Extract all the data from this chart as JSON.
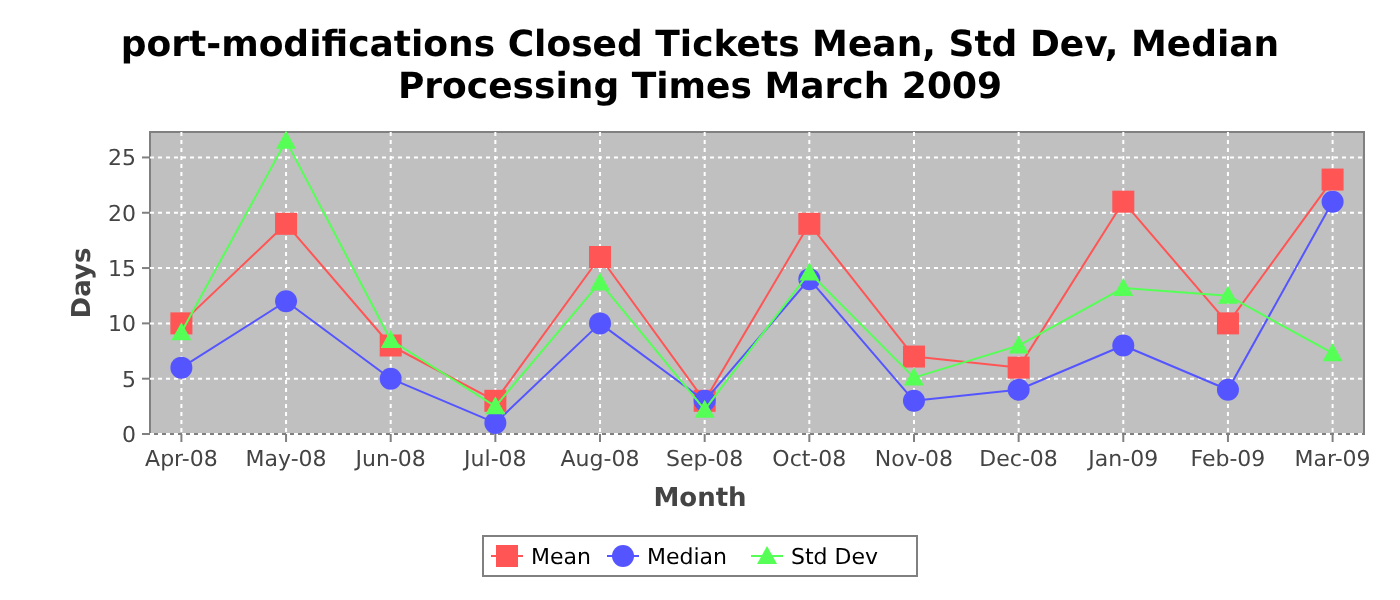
{
  "chart_data": {
    "type": "line",
    "title": "port-modifications Closed Tickets Mean, Std Dev, Median Processing Times March 2009",
    "xlabel": "Month",
    "ylabel": "Days",
    "categories": [
      "Apr-08",
      "May-08",
      "Jun-08",
      "Jul-08",
      "Aug-08",
      "Sep-08",
      "Oct-08",
      "Nov-08",
      "Dec-08",
      "Jan-09",
      "Feb-09",
      "Mar-09"
    ],
    "series": [
      {
        "name": "Mean",
        "color": "#ff5555",
        "marker": "square",
        "values": [
          10,
          19,
          8,
          3,
          16,
          3,
          19,
          7,
          6,
          21,
          10,
          23
        ]
      },
      {
        "name": "Median",
        "color": "#5555ff",
        "marker": "circle",
        "values": [
          6,
          12,
          5,
          1,
          10,
          3,
          14,
          3,
          4,
          8,
          4,
          21
        ]
      },
      {
        "name": "Std Dev",
        "color": "#55ff55",
        "marker": "triangle",
        "values": [
          9.2,
          26.5,
          8.5,
          2.5,
          13.7,
          2.2,
          14.6,
          5.1,
          8,
          13.2,
          12.5,
          7.3
        ]
      }
    ],
    "ylim": [
      0,
      27.3
    ],
    "yticks": [
      0,
      5,
      10,
      15,
      20,
      25
    ],
    "grid": true,
    "legend": "bottom"
  }
}
